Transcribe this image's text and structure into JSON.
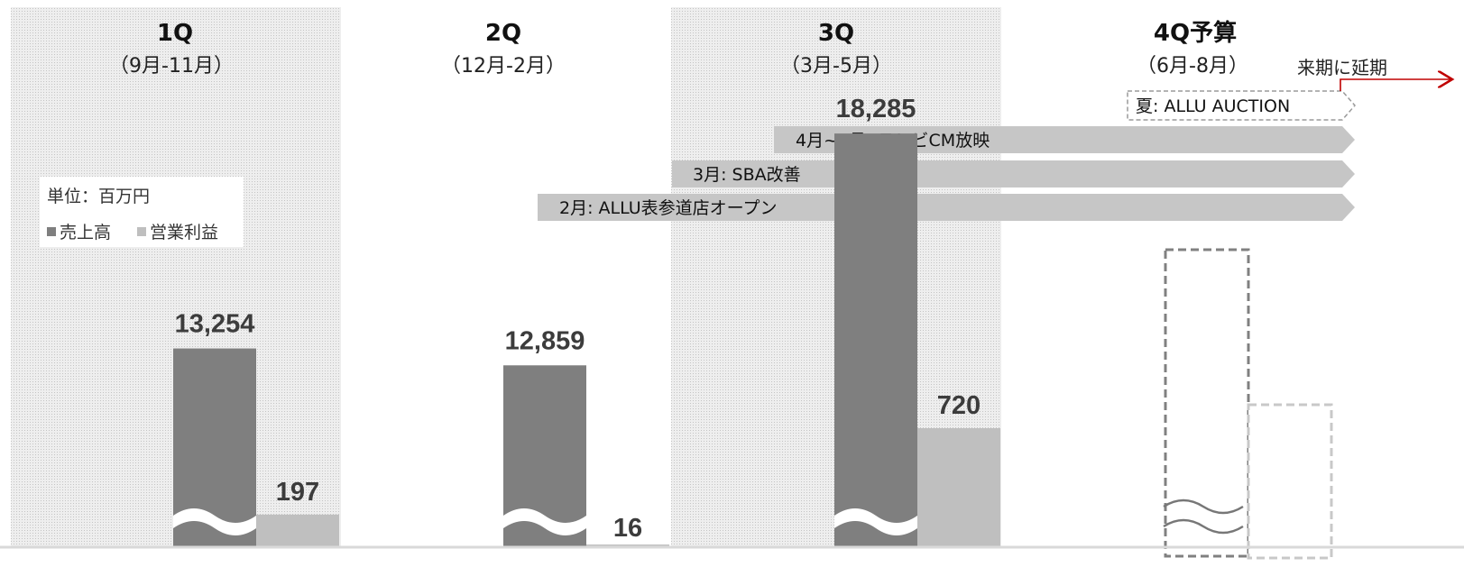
{
  "legend": {
    "unit": "単位：百万円",
    "items": [
      {
        "label": "売上高",
        "color": "#7f7f7f"
      },
      {
        "label": "営業利益",
        "color": "#bfbfbf"
      }
    ]
  },
  "quarters": [
    {
      "title": "1Q",
      "range": "（9月-11月）"
    },
    {
      "title": "2Q",
      "range": "（12月-2月）"
    },
    {
      "title": "3Q",
      "range": "（3月-5月）"
    },
    {
      "title": "4Q予算",
      "range": "（6月-8月）"
    }
  ],
  "events": [
    {
      "label": "夏: ALLU AUCTION",
      "style": "dashed"
    },
    {
      "label": "4月~5月: テレビCM放映",
      "style": "solid"
    },
    {
      "label": "3月: SBA改善",
      "style": "solid"
    },
    {
      "label": "2月: ALLU表参道店オープン",
      "style": "solid"
    }
  ],
  "postpone_note": "来期に延期",
  "chart_data": {
    "type": "bar",
    "categories": [
      "1Q",
      "2Q",
      "3Q",
      "4Q予算"
    ],
    "unit": "百万円",
    "series": [
      {
        "name": "売上高",
        "values": [
          13254,
          12859,
          18285,
          null
        ],
        "labels": [
          "13,254",
          "12,859",
          "18,285",
          ""
        ],
        "color": "#7f7f7f"
      },
      {
        "name": "営業利益",
        "values": [
          197,
          16,
          720,
          null
        ],
        "labels": [
          "197",
          "16",
          "720",
          ""
        ],
        "color": "#bfbfbf"
      }
    ],
    "axis_break": true,
    "shaded_quarters": [
      "1Q",
      "3Q"
    ],
    "budget_quarter_outlined": "4Q予算"
  }
}
